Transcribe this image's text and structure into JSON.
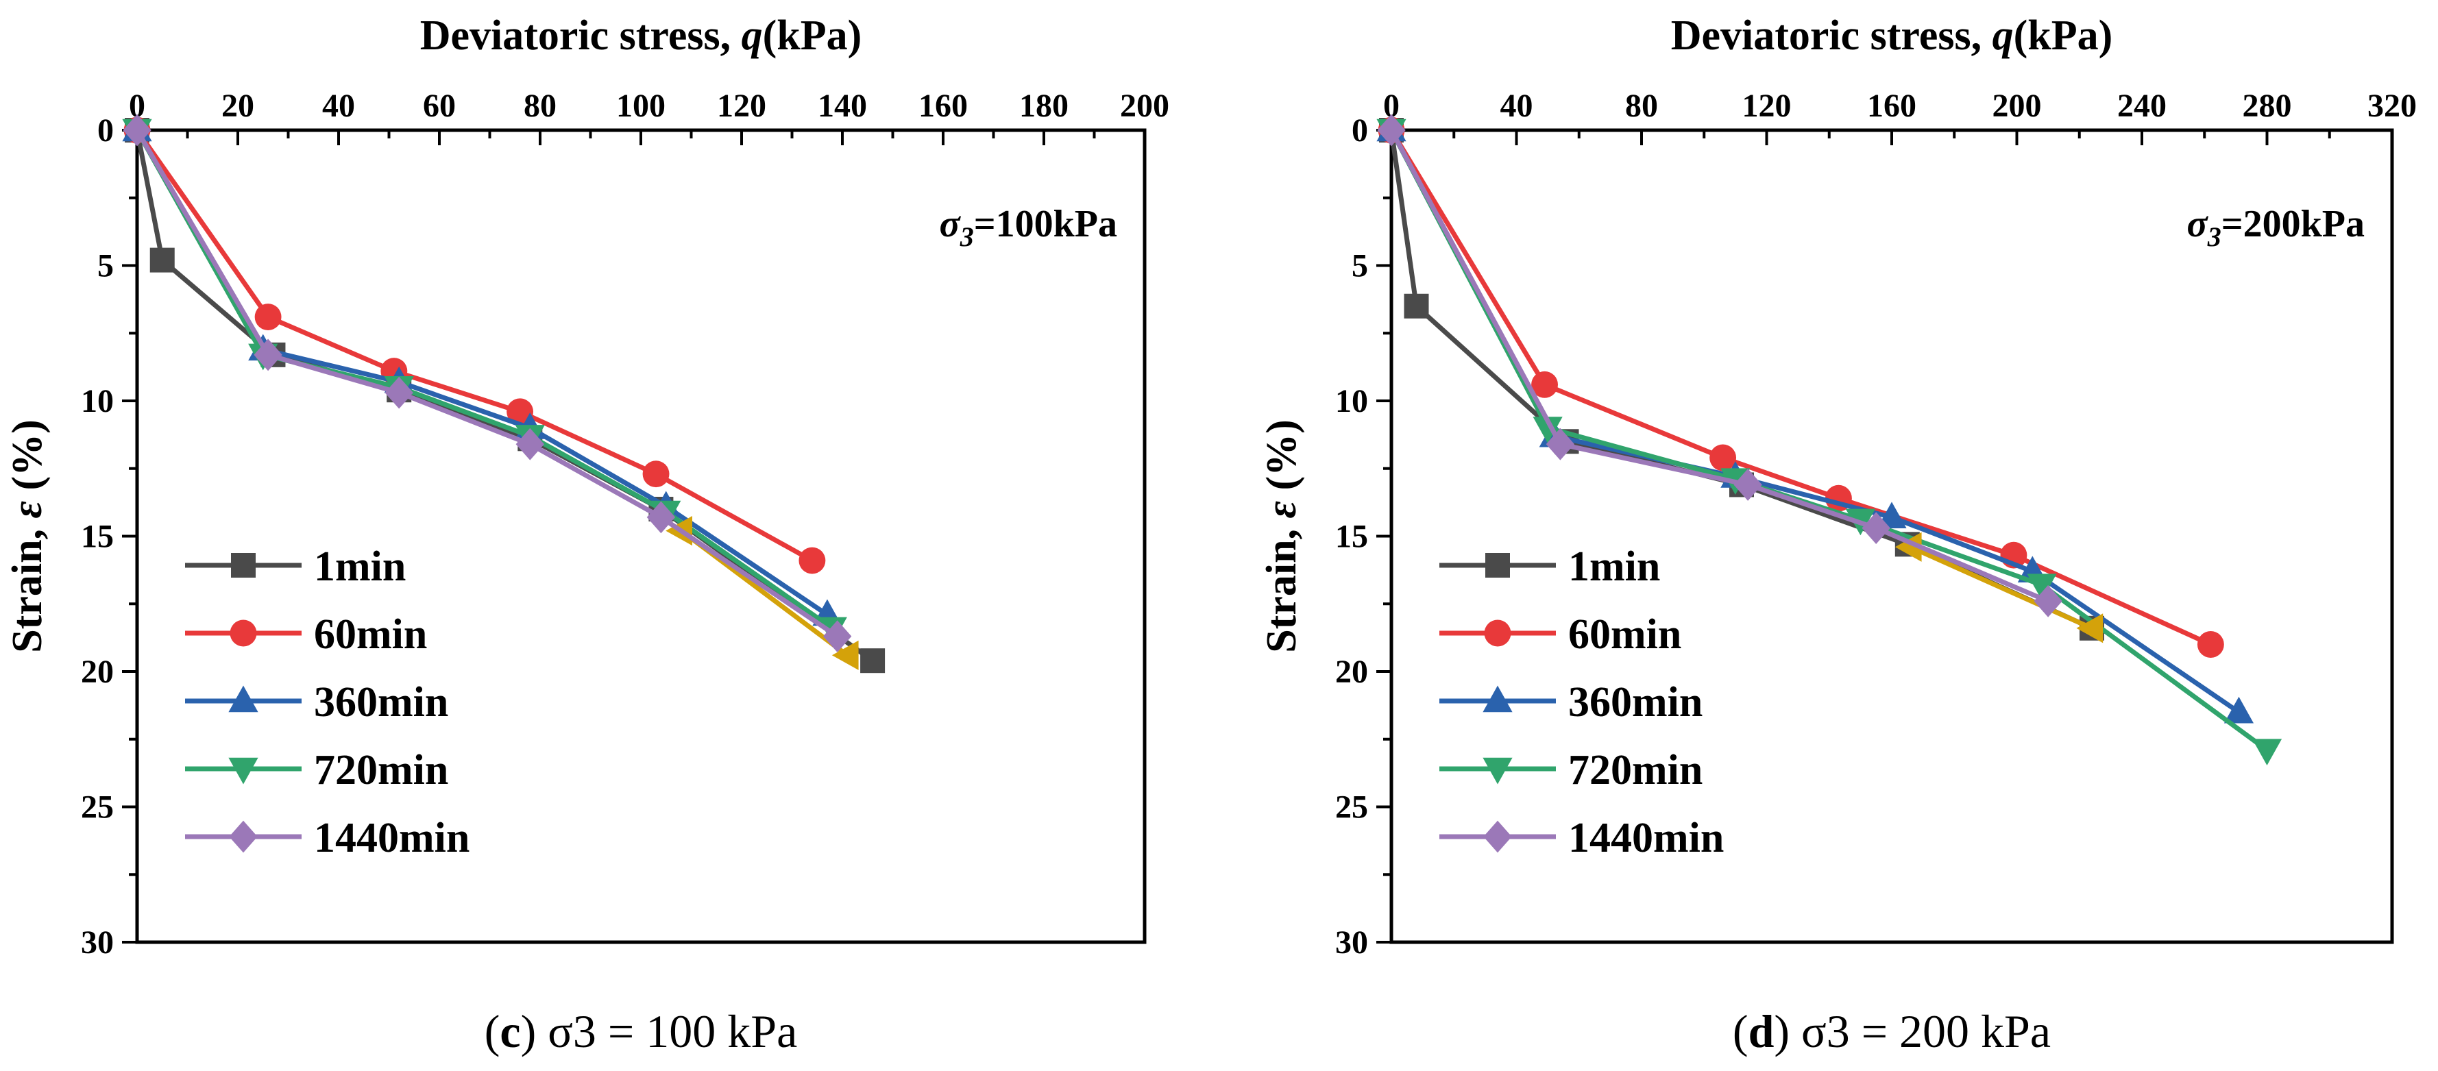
{
  "chart_data": [
    {
      "type": "line",
      "panel": "c",
      "caption_letter": "c",
      "caption_rest": " σ3 = 100 kPa",
      "xlabel_pre": "Deviatoric stress, ",
      "xlabel_var": "q",
      "xlabel_post": "(kPa)",
      "xlabel_position": "top",
      "ylabel_pre": "Strain, ",
      "ylabel_var": "ε",
      "ylabel_post": " (%)",
      "xlim": [
        0,
        200
      ],
      "ylim": [
        0,
        30
      ],
      "y_inverted": true,
      "xticks": [
        0,
        20,
        40,
        60,
        80,
        100,
        120,
        140,
        160,
        180,
        200
      ],
      "yticks": [
        0,
        5,
        10,
        15,
        20,
        25,
        30
      ],
      "annotation": {
        "sym": "σ",
        "sub": "3",
        "rest": "=100kPa"
      },
      "legend_position": "bottom-left",
      "series": [
        {
          "name": "1min",
          "color": "#4a4a4a",
          "marker": "square",
          "x": [
            0,
            5,
            27,
            52,
            78,
            104,
            146
          ],
          "y": [
            0,
            4.8,
            8.3,
            9.6,
            11.4,
            14.0,
            19.6
          ]
        },
        {
          "name": "60min",
          "color": "#e8393a",
          "marker": "circle",
          "x": [
            0,
            26,
            51,
            76,
            103,
            134
          ],
          "y": [
            0,
            6.9,
            8.9,
            10.4,
            12.7,
            15.9
          ]
        },
        {
          "name": "360min",
          "color": "#2a62ad",
          "marker": "triangle-up",
          "x": [
            0,
            25,
            52,
            78,
            105,
            137
          ],
          "y": [
            0,
            8.1,
            9.3,
            11.0,
            13.9,
            17.9
          ]
        },
        {
          "name": "720min",
          "color": "#30a46c",
          "marker": "triangle-down",
          "x": [
            0,
            25,
            52,
            78,
            105,
            138
          ],
          "y": [
            0,
            8.3,
            9.5,
            11.3,
            14.1,
            18.4
          ]
        },
        {
          "name": "",
          "color": "#d4a20a",
          "marker": "triangle-left",
          "x": [
            108,
            141
          ],
          "y": [
            14.8,
            19.4
          ]
        },
        {
          "name": "1440min",
          "color": "#9b78b8",
          "marker": "diamond",
          "x": [
            0,
            26,
            52,
            78,
            104,
            139
          ],
          "y": [
            0,
            8.3,
            9.7,
            11.6,
            14.3,
            18.7
          ]
        }
      ]
    },
    {
      "type": "line",
      "panel": "d",
      "caption_letter": "d",
      "caption_rest": " σ3 = 200 kPa",
      "xlabel_pre": "Deviatoric stress, ",
      "xlabel_var": "q",
      "xlabel_post": "(kPa)",
      "xlabel_position": "top",
      "ylabel_pre": "Strain, ",
      "ylabel_var": "ε",
      "ylabel_post": " (%)",
      "xlim": [
        0,
        320
      ],
      "ylim": [
        0,
        30
      ],
      "y_inverted": true,
      "xticks": [
        0,
        40,
        80,
        120,
        160,
        200,
        240,
        280,
        320
      ],
      "yticks": [
        0,
        5,
        10,
        15,
        20,
        25,
        30
      ],
      "annotation": {
        "sym": "σ",
        "sub": "3",
        "rest": "=200kPa"
      },
      "legend_position": "bottom-left",
      "series": [
        {
          "name": "1min",
          "color": "#4a4a4a",
          "marker": "square",
          "x": [
            0,
            8,
            56,
            112,
            165,
            224
          ],
          "y": [
            0,
            6.5,
            11.5,
            13.1,
            15.3,
            18.4
          ]
        },
        {
          "name": "60min",
          "color": "#e8393a",
          "marker": "circle",
          "x": [
            0,
            49,
            106,
            143,
            199,
            262
          ],
          "y": [
            0,
            9.4,
            12.1,
            13.6,
            15.7,
            19.0
          ]
        },
        {
          "name": "360min",
          "color": "#2a62ad",
          "marker": "triangle-up",
          "x": [
            0,
            52,
            110,
            160,
            205,
            271
          ],
          "y": [
            0,
            11.3,
            12.8,
            14.3,
            16.3,
            21.5
          ]
        },
        {
          "name": "720min",
          "color": "#30a46c",
          "marker": "triangle-down",
          "x": [
            0,
            50,
            110,
            150,
            208,
            280
          ],
          "y": [
            0,
            11.0,
            12.9,
            14.4,
            16.8,
            22.9
          ]
        },
        {
          "name": "",
          "color": "#d4a20a",
          "marker": "triangle-left",
          "x": [
            166,
            224
          ],
          "y": [
            15.4,
            18.4
          ]
        },
        {
          "name": "1440min",
          "color": "#9b78b8",
          "marker": "diamond",
          "x": [
            0,
            54,
            114,
            155,
            210
          ],
          "y": [
            0,
            11.6,
            13.1,
            14.7,
            17.4
          ]
        }
      ]
    }
  ]
}
